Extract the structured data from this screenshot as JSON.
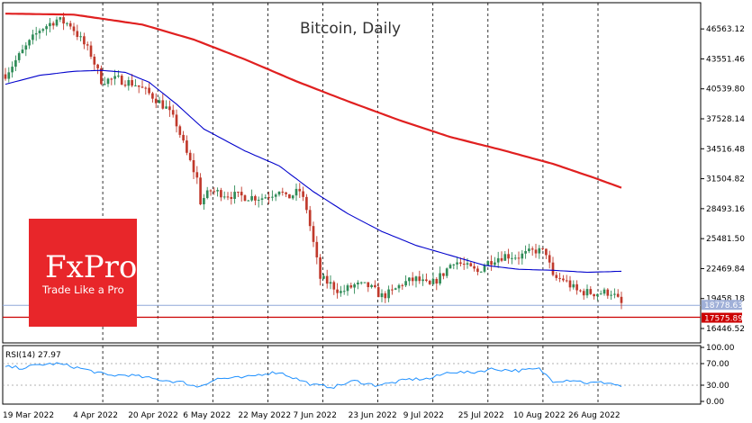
{
  "chart_data": {
    "type": "candlestick",
    "title": "Bitcoin, Daily",
    "x_labels": [
      "19 Mar 2022",
      "4 Apr 2022",
      "20 Apr 2022",
      "6 May 2022",
      "22 May 2022",
      "7 Jun 2022",
      "23 Jun 2022",
      "9 Jul 2022",
      "25 Jul 2022",
      "10 Aug 2022",
      "26 Aug 2022"
    ],
    "y_ticks": [
      46563.12,
      43551.46,
      40539.8,
      37528.14,
      34516.48,
      31504.82,
      28493.16,
      25481.5,
      22469.84,
      19458.18,
      16446.52
    ],
    "ylim": [
      15000,
      49200
    ],
    "current_price_label": "18778.63",
    "support_level_label": "17575.89",
    "support_level": 17575.89,
    "current_price": 18778.63,
    "ma_fast_anchor_points": [
      [
        0,
        41000
      ],
      [
        10,
        41900
      ],
      [
        20,
        42300
      ],
      [
        28,
        42400
      ],
      [
        35,
        42200
      ],
      [
        42,
        41200
      ],
      [
        50,
        39000
      ],
      [
        58,
        36500
      ],
      [
        70,
        34300
      ],
      [
        80,
        32800
      ],
      [
        90,
        30200
      ],
      [
        100,
        28000
      ],
      [
        110,
        26200
      ],
      [
        120,
        24800
      ],
      [
        130,
        23800
      ],
      [
        140,
        22800
      ],
      [
        150,
        22400
      ],
      [
        160,
        22300
      ],
      [
        170,
        22100
      ],
      [
        180,
        22200
      ]
    ],
    "ma_slow_anchor_points": [
      [
        0,
        48100
      ],
      [
        20,
        48000
      ],
      [
        40,
        47000
      ],
      [
        55,
        45500
      ],
      [
        70,
        43500
      ],
      [
        85,
        41300
      ],
      [
        100,
        39300
      ],
      [
        115,
        37400
      ],
      [
        130,
        35700
      ],
      [
        145,
        34400
      ],
      [
        160,
        33000
      ],
      [
        172,
        31600
      ],
      [
        180,
        30600
      ]
    ],
    "price_anchor_points": [
      [
        0,
        42000
      ],
      [
        5,
        44300
      ],
      [
        10,
        46500
      ],
      [
        15,
        47500
      ],
      [
        19,
        47000
      ],
      [
        22,
        45500
      ],
      [
        25,
        44000
      ],
      [
        28,
        41400
      ],
      [
        33,
        41500
      ],
      [
        38,
        41000
      ],
      [
        43,
        39800
      ],
      [
        47,
        38600
      ],
      [
        50,
        37000
      ],
      [
        53,
        34000
      ],
      [
        56,
        31500
      ],
      [
        57,
        29200
      ],
      [
        60,
        30300
      ],
      [
        65,
        29900
      ],
      [
        70,
        29700
      ],
      [
        75,
        29600
      ],
      [
        78,
        30000
      ],
      [
        80,
        30500
      ],
      [
        82,
        29500
      ],
      [
        86,
        30300
      ],
      [
        88,
        28500
      ],
      [
        90,
        25000
      ],
      [
        92,
        21500
      ],
      [
        95,
        20900
      ],
      [
        98,
        20100
      ],
      [
        102,
        20800
      ],
      [
        106,
        20700
      ],
      [
        110,
        19700
      ],
      [
        113,
        20100
      ],
      [
        116,
        21000
      ],
      [
        120,
        21400
      ],
      [
        124,
        20700
      ],
      [
        128,
        22000
      ],
      [
        131,
        23300
      ],
      [
        135,
        22600
      ],
      [
        138,
        22100
      ],
      [
        140,
        22900
      ],
      [
        143,
        23500
      ],
      [
        146,
        23800
      ],
      [
        150,
        23700
      ],
      [
        155,
        24300
      ],
      [
        158,
        24100
      ],
      [
        160,
        21500
      ],
      [
        163,
        21400
      ],
      [
        167,
        20200
      ],
      [
        172,
        20000
      ],
      [
        177,
        20100
      ],
      [
        180,
        18900
      ]
    ],
    "rsi": {
      "label": "RSI(14) 27.97",
      "y_ticks": [
        100.0,
        70.0,
        30.0,
        0.0
      ],
      "extra_tick_labels": [
        "100.00",
        "70.00",
        "30.00",
        "0.00"
      ],
      "anchor_points": [
        [
          0,
          64
        ],
        [
          5,
          62
        ],
        [
          10,
          68
        ],
        [
          15,
          70
        ],
        [
          20,
          64
        ],
        [
          26,
          55
        ],
        [
          30,
          48
        ],
        [
          36,
          49
        ],
        [
          44,
          41
        ],
        [
          52,
          35
        ],
        [
          56,
          27
        ],
        [
          62,
          42
        ],
        [
          70,
          44
        ],
        [
          76,
          52
        ],
        [
          80,
          54
        ],
        [
          85,
          42
        ],
        [
          90,
          30
        ],
        [
          96,
          27
        ],
        [
          102,
          38
        ],
        [
          108,
          30
        ],
        [
          112,
          33
        ],
        [
          118,
          41
        ],
        [
          124,
          42
        ],
        [
          130,
          55
        ],
        [
          136,
          53
        ],
        [
          142,
          60
        ],
        [
          150,
          57
        ],
        [
          156,
          60
        ],
        [
          160,
          38
        ],
        [
          166,
          40
        ],
        [
          170,
          34
        ],
        [
          176,
          35
        ],
        [
          180,
          28
        ]
      ]
    },
    "grid": "vertical dashed",
    "legend": "none"
  },
  "logo": {
    "brand": "FxPro",
    "tagline": "Trade Like a Pro"
  },
  "colors": {
    "candle_up": "#2e8b57",
    "candle_down": "#c0392b",
    "ma_fast": "#0000cc",
    "ma_slow": "#e02020",
    "rsi_line": "#1e90ff",
    "support": "#cc0000",
    "current_line": "#8fa8d8",
    "logo_bg": "#e8262a",
    "current_badge": "#a0b0d8",
    "support_badge": "#cc0000"
  }
}
